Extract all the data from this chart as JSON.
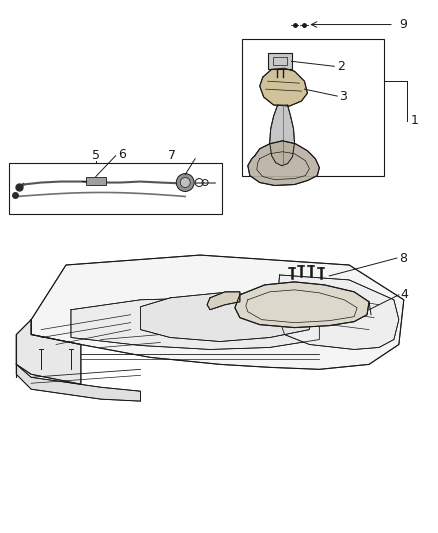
{
  "bg_color": "#ffffff",
  "line_color": "#1a1a1a",
  "gray": "#606060",
  "light_gray": "#909090",
  "font_size": 8
}
